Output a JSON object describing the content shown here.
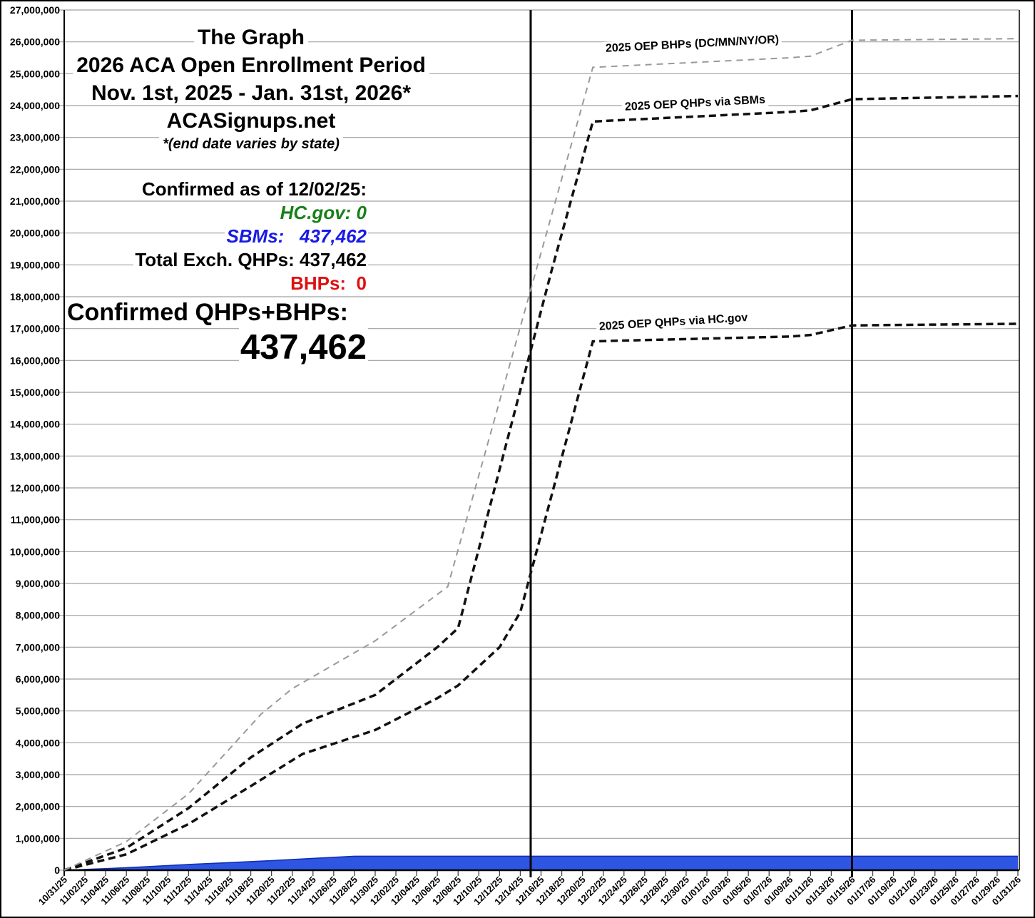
{
  "title": {
    "line1": "The Graph",
    "line2": "2026 ACA Open Enrollment Period",
    "line3": "Nov. 1st, 2025 - Jan. 31st, 2026*",
    "line4": "ACASignups.net",
    "note": "*(end date varies by state)"
  },
  "stats": {
    "as_of": "Confirmed as of 12/02/25:",
    "hcgov": "HC.gov: 0",
    "sbms": "SBMs:   437,462",
    "total_qhps": "Total Exch. QHPs: 437,462",
    "bhps": "BHPs:  0",
    "sum_label": "Confirmed QHPs+BHPs:",
    "sum_value": "437,462"
  },
  "colors": {
    "area_fill": "#2f55e3",
    "area_stroke": "#1230b4",
    "line_black": "#111111",
    "line_gray": "#999999",
    "grid": "#a0a0a0",
    "axis": "#000000",
    "green_text": "#188018",
    "blue_text": "#1a1ae6",
    "red_text": "#dd1111"
  },
  "chart_data": {
    "type": "line",
    "title": "2026 ACA Open Enrollment Period cumulative signups vs 2025 OEP reference lines",
    "xlabel": "",
    "ylabel": "",
    "ylim": [
      0,
      27000000
    ],
    "grid": true,
    "x_tick_labels": [
      "10/31/25",
      "11/02/25",
      "11/04/25",
      "11/06/25",
      "11/08/25",
      "11/10/25",
      "11/12/25",
      "11/14/25",
      "11/16/25",
      "11/18/25",
      "11/20/25",
      "11/22/25",
      "11/24/25",
      "11/26/25",
      "11/28/25",
      "11/30/25",
      "12/02/25",
      "12/04/25",
      "12/06/25",
      "12/08/25",
      "12/10/25",
      "12/12/25",
      "12/14/25",
      "12/16/25",
      "12/18/25",
      "12/20/25",
      "12/22/25",
      "12/24/25",
      "12/26/25",
      "12/28/25",
      "12/30/25",
      "01/01/26",
      "01/03/26",
      "01/05/26",
      "01/07/26",
      "01/09/26",
      "01/11/26",
      "01/13/26",
      "01/15/26",
      "01/17/26",
      "01/19/26",
      "01/21/26",
      "01/23/26",
      "01/25/26",
      "01/27/26",
      "01/29/26",
      "01/31/26"
    ],
    "y_tick_labels": [
      "0",
      "1,000,000",
      "2,000,000",
      "3,000,000",
      "4,000,000",
      "5,000,000",
      "6,000,000",
      "7,000,000",
      "8,000,000",
      "9,000,000",
      "10,000,000",
      "11,000,000",
      "12,000,000",
      "13,000,000",
      "14,000,000",
      "15,000,000",
      "16,000,000",
      "17,000,000",
      "18,000,000",
      "19,000,000",
      "20,000,000",
      "21,000,000",
      "22,000,000",
      "23,000,000",
      "24,000,000",
      "25,000,000",
      "26,000,000",
      "27,000,000"
    ],
    "vertical_markers": [
      "12/15/25",
      "01/15/26"
    ],
    "series": [
      {
        "name": "2026 OEP confirmed QHPs+BHPs (blue area)",
        "style": "area",
        "points": [
          [
            "10/31/25",
            0
          ],
          [
            "11/04/25",
            50000
          ],
          [
            "11/08/25",
            110000
          ],
          [
            "11/12/25",
            180000
          ],
          [
            "11/16/25",
            240000
          ],
          [
            "11/20/25",
            300000
          ],
          [
            "11/24/25",
            370000
          ],
          [
            "11/28/25",
            437462
          ],
          [
            "01/31/26",
            437462
          ]
        ]
      },
      {
        "name": "2025 OEP QHPs via HC.gov",
        "style": "dashed-black",
        "points": [
          [
            "10/31/25",
            0
          ],
          [
            "11/06/25",
            500000
          ],
          [
            "11/12/25",
            1450000
          ],
          [
            "11/18/25",
            2640000
          ],
          [
            "11/23/25",
            3650000
          ],
          [
            "11/30/25",
            4400000
          ],
          [
            "12/06/25",
            5400000
          ],
          [
            "12/08/25",
            5800000
          ],
          [
            "12/12/25",
            7000000
          ],
          [
            "12/14/25",
            8100000
          ],
          [
            "12/21/25",
            16600000
          ],
          [
            "01/09/26",
            16750000
          ],
          [
            "01/11/26",
            16800000
          ],
          [
            "01/15/26",
            17100000
          ],
          [
            "01/31/26",
            17150000
          ]
        ]
      },
      {
        "name": "2025 OEP QHPs via SBMs",
        "style": "dashed-black",
        "points": [
          [
            "10/31/25",
            0
          ],
          [
            "11/06/25",
            700000
          ],
          [
            "11/12/25",
            1950000
          ],
          [
            "11/18/25",
            3540000
          ],
          [
            "11/23/25",
            4600000
          ],
          [
            "11/30/25",
            5500000
          ],
          [
            "12/06/25",
            7000000
          ],
          [
            "12/08/25",
            7600000
          ],
          [
            "12/17/25",
            18800000
          ],
          [
            "12/21/25",
            23500000
          ],
          [
            "01/09/26",
            23800000
          ],
          [
            "01/11/26",
            23850000
          ],
          [
            "01/15/26",
            24200000
          ],
          [
            "01/31/26",
            24300000
          ]
        ]
      },
      {
        "name": "2025 OEP BHPs (DC/MN/NY/OR)",
        "style": "dashed-gray",
        "points": [
          [
            "10/31/25",
            0
          ],
          [
            "11/06/25",
            900000
          ],
          [
            "11/12/25",
            2400000
          ],
          [
            "11/19/25",
            4900000
          ],
          [
            "11/22/25",
            5700000
          ],
          [
            "11/30/25",
            7200000
          ],
          [
            "12/07/25",
            8900000
          ],
          [
            "12/21/25",
            25200000
          ],
          [
            "01/09/26",
            25500000
          ],
          [
            "01/11/26",
            25550000
          ],
          [
            "01/15/26",
            26050000
          ],
          [
            "01/31/26",
            26100000
          ]
        ]
      }
    ],
    "series_labels": {
      "bhps": "2025 OEP BHPs (DC/MN/NY/OR)",
      "sbms": "2025 OEP QHPs via SBMs",
      "hcgov": "2025 OEP QHPs via HC.gov"
    }
  }
}
